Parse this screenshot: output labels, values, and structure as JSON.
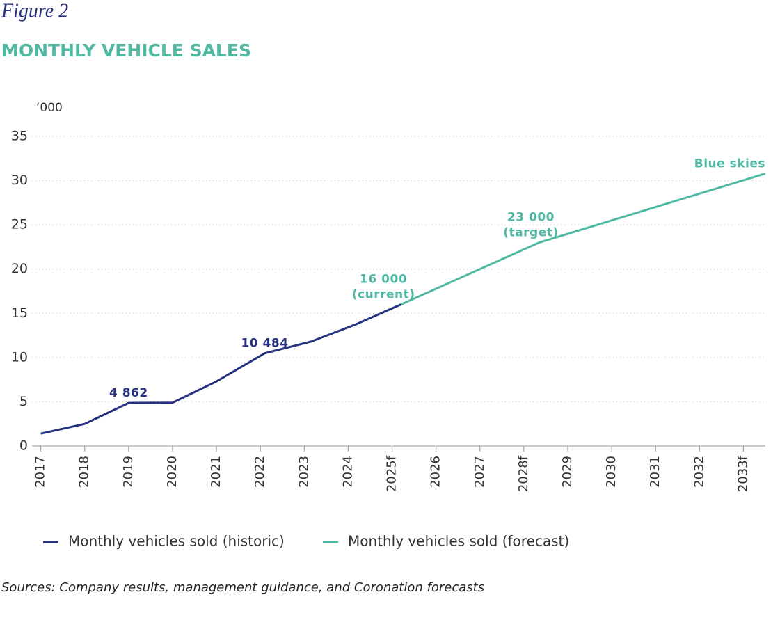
{
  "chart_data": {
    "type": "line",
    "figure_label": "Figure 2",
    "title": "MONTHLY VEHICLE SALES",
    "y_unit": "‘000",
    "source": "Sources: Company results, management guidance, and Coronation forecasts",
    "xlim": [
      2016.8,
      2033.5
    ],
    "xticks": [
      2017,
      2018,
      2019,
      2020,
      2021,
      2022,
      2023,
      2024,
      {
        "value": 2025,
        "label": "2025f"
      },
      2026,
      2027,
      {
        "value": 2028,
        "label": "2028f"
      },
      2029,
      2030,
      2031,
      2032,
      {
        "value": 2033,
        "label": "2033f"
      }
    ],
    "ylim": [
      0,
      35
    ],
    "yticks": [
      0,
      5,
      10,
      15,
      20,
      25,
      30,
      35
    ],
    "grid": true,
    "series": [
      {
        "name": "Monthly vehicles sold (historic)",
        "color": "#27327e",
        "x": [
          2017,
          2018,
          2019,
          2020,
          2021,
          2022.1,
          2023.15,
          2024.15,
          2025.2
        ],
        "values": [
          1.4,
          2.5,
          4.862,
          4.9,
          7.3,
          10.484,
          11.8,
          13.7,
          16
        ],
        "value_labels": [
          null,
          null,
          [
            "4 862"
          ],
          null,
          null,
          [
            "10 484"
          ],
          null,
          null,
          null
        ]
      },
      {
        "name": "Monthly vehicles sold (forecast)",
        "color": "#4fb9a4",
        "x": [
          2025.2,
          2028.35,
          2033.5
        ],
        "values": [
          16,
          23,
          30.8
        ],
        "value_labels": [
          [
            "16 000",
            "(current)"
          ],
          [
            "23 000",
            "(target)"
          ],
          [
            "Blue skies"
          ]
        ]
      }
    ]
  }
}
